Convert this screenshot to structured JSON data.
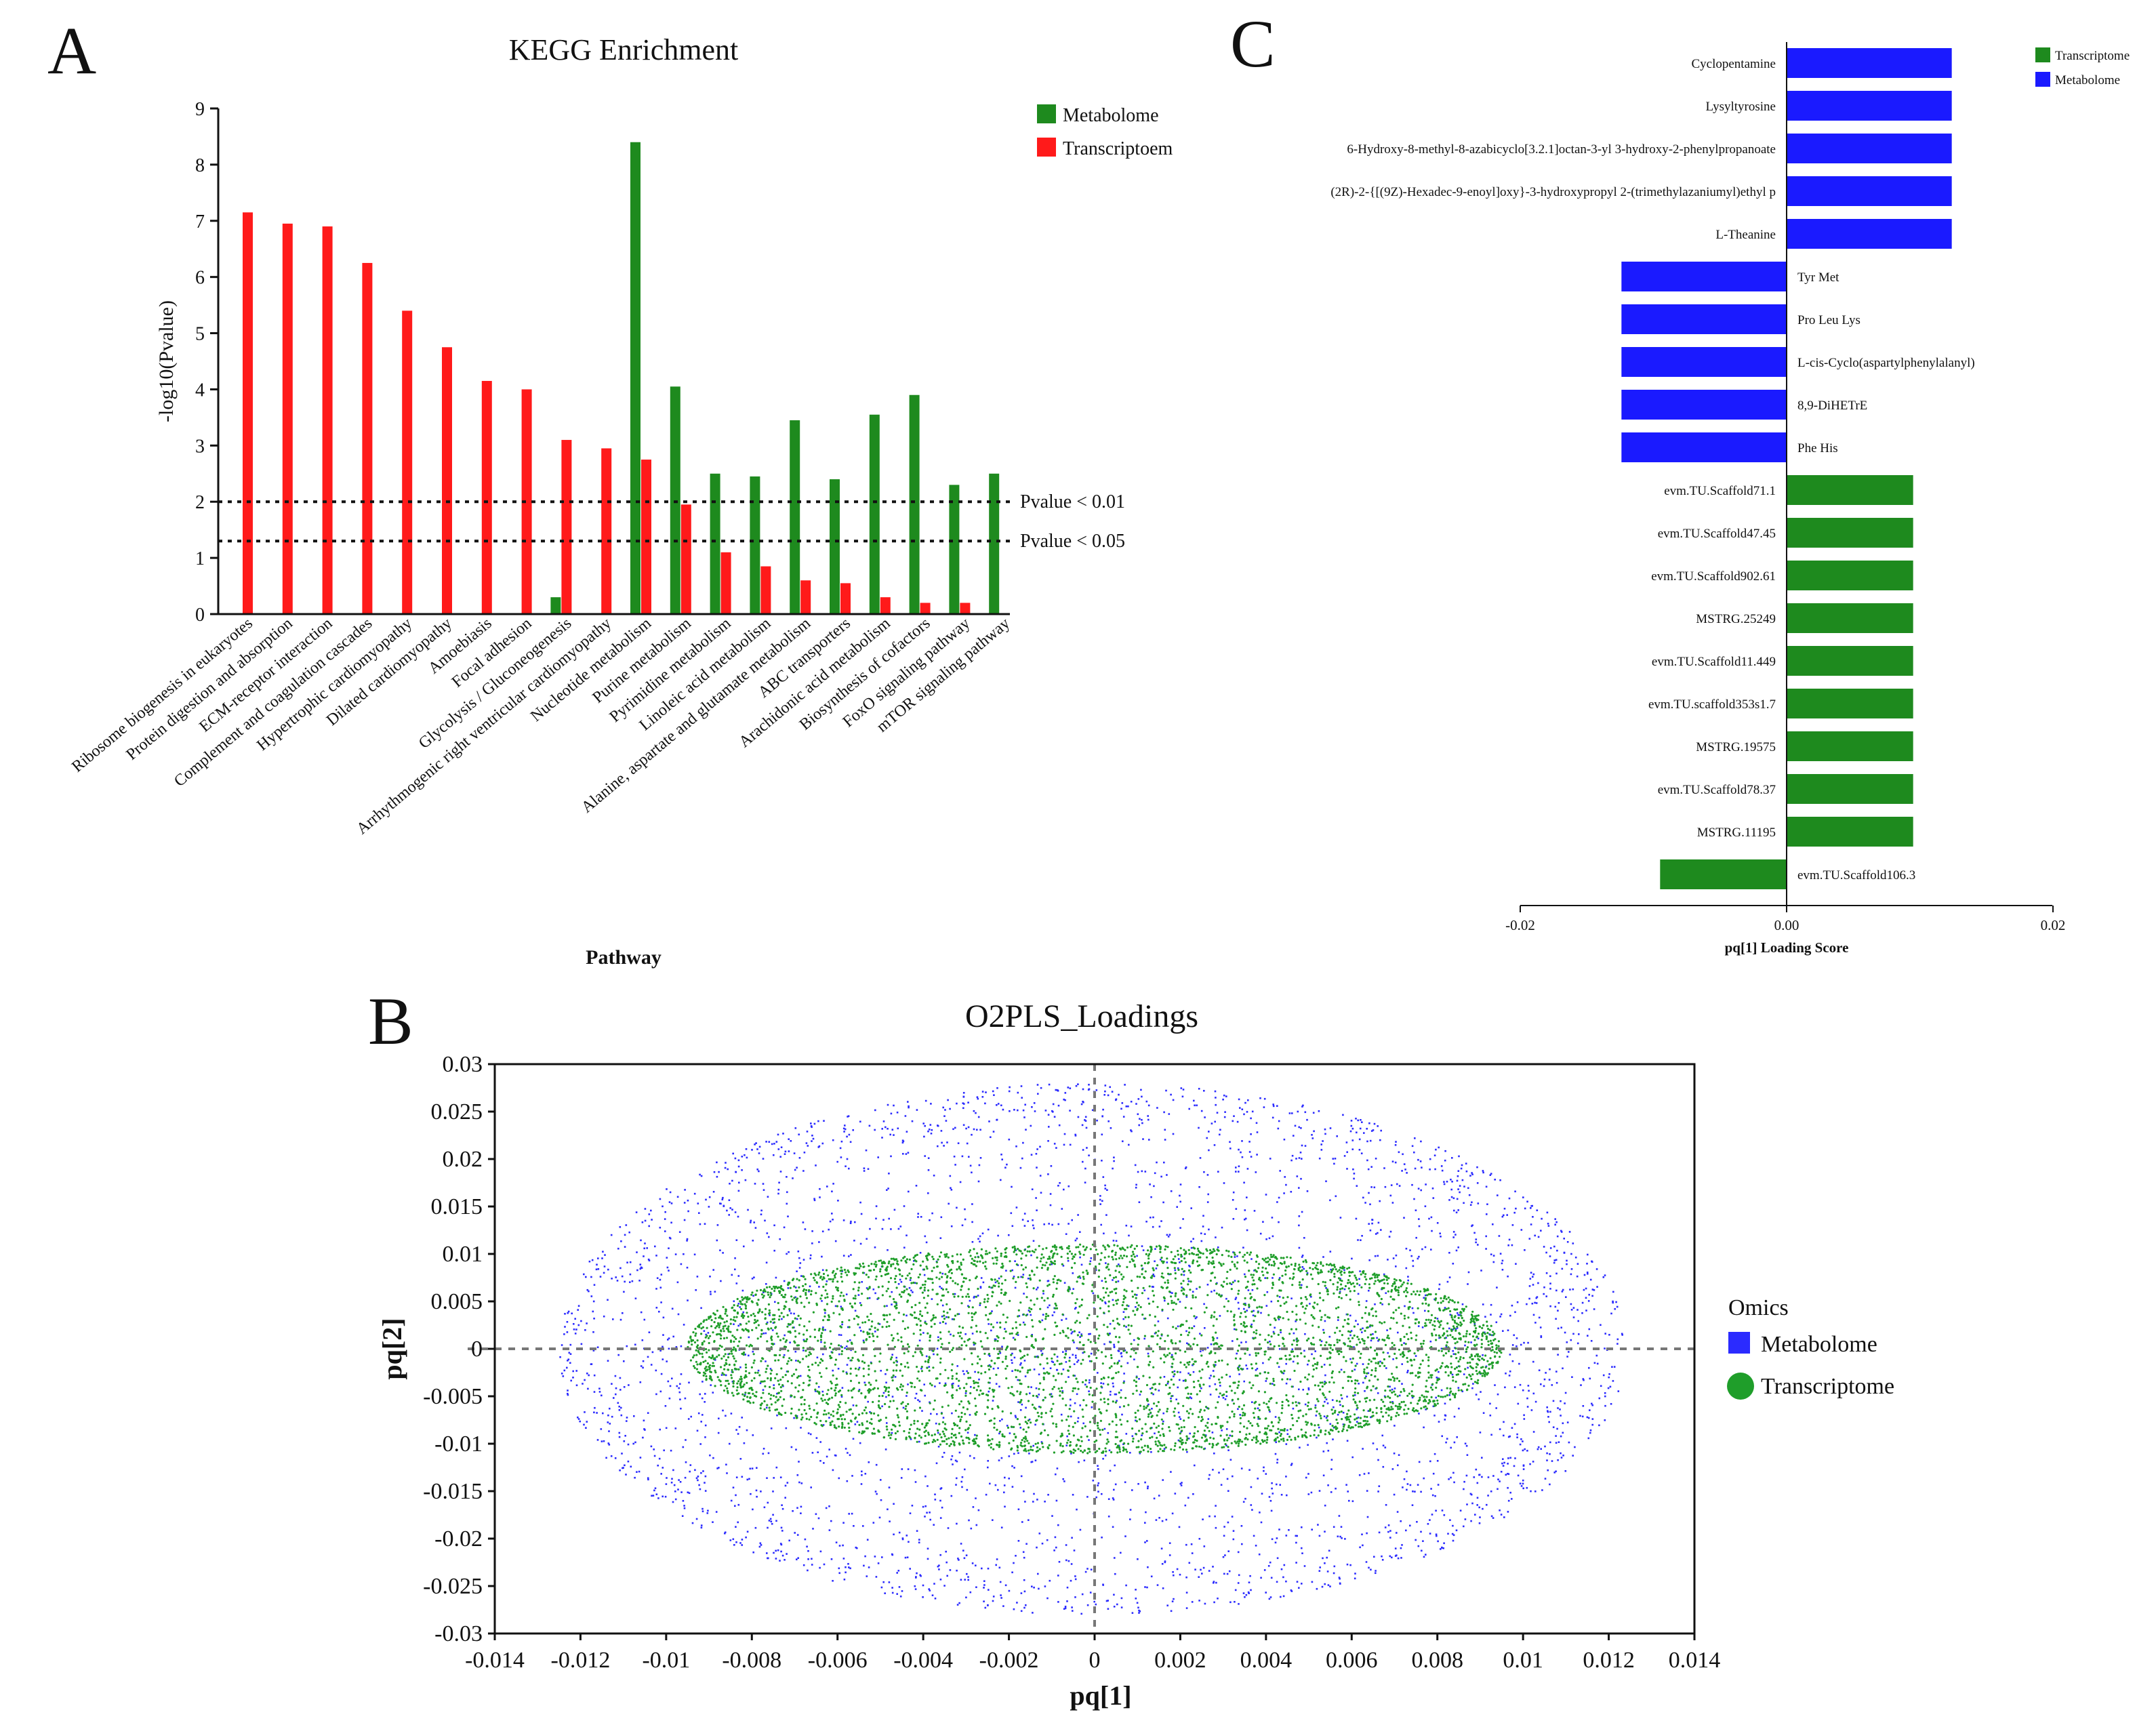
{
  "chart_data": [
    {
      "panel": "A",
      "type": "bar",
      "title": "KEGG Enrichment",
      "xlabel": "Pathway",
      "ylabel": "-log10(Pvalue)",
      "ylim": [
        0,
        9
      ],
      "yticks": [
        "0",
        "1",
        "2",
        "3",
        "4",
        "5",
        "6",
        "7",
        "8",
        "9"
      ],
      "categories": [
        "Ribosome biogenesis in eukaryotes",
        "Protein digestion and absorption",
        "ECM-receptor interaction",
        "Complement and coagulation cascades",
        "Hypertrophic cardiomyopathy",
        "Dilated cardiomyopathy",
        "Amoebiasis",
        "Focal adhesion",
        "Glycolysis / Gluconeogenesis",
        "Arrhythmogenic right ventricular cardiomyopathy",
        "Nucleotide metabolism",
        "Purine metabolism",
        "Pyrimidine metabolism",
        "Linoleic acid metabolism",
        "Alanine, aspartate and glutamate metabolism",
        "ABC transporters",
        "Arachidonic acid metabolism",
        "Biosynthesis of cofactors",
        "FoxO signaling pathway",
        "mTOR signaling pathway"
      ],
      "series": [
        {
          "name": "Metabolome",
          "color": "#1e8a1e",
          "values": [
            0,
            0,
            0,
            0,
            0,
            0,
            0,
            0,
            0.3,
            0,
            8.4,
            4.05,
            2.5,
            2.45,
            3.45,
            2.4,
            3.55,
            3.9,
            2.3,
            2.5
          ]
        },
        {
          "name": "Transcriptoem",
          "color": "#ff1a1a",
          "values": [
            7.15,
            6.95,
            6.9,
            6.25,
            5.4,
            4.75,
            4.15,
            4.0,
            3.1,
            2.95,
            2.75,
            1.95,
            1.1,
            0.85,
            0.6,
            0.55,
            0.3,
            0.2,
            0.2,
            0
          ]
        }
      ],
      "reference_lines": [
        {
          "label": "Pvalue < 0.01",
          "value": 2.0
        },
        {
          "label": "Pvalue < 0.05",
          "value": 1.3
        }
      ]
    },
    {
      "panel": "C",
      "type": "bar",
      "orientation": "horizontal",
      "xlabel": "pq[1] Loading Score",
      "xlim": [
        -0.02,
        0.02
      ],
      "xticks": [
        "-0.02",
        "0.00",
        "0.02"
      ],
      "series_names": [
        {
          "name": "Transcriptome",
          "color": "#1e8a1e"
        },
        {
          "name": "Metabolome",
          "color": "#1a1aff"
        }
      ],
      "bars": [
        {
          "label": "Cyclopentamine",
          "value": 0.0124,
          "group": "Metabolome"
        },
        {
          "label": "Lysyltyrosine",
          "value": 0.0124,
          "group": "Metabolome"
        },
        {
          "label": "6-Hydroxy-8-methyl-8-azabicyclo[3.2.1]octan-3-yl 3-hydroxy-2-phenylpropanoate",
          "value": 0.0124,
          "group": "Metabolome"
        },
        {
          "label": "(2R)-2-{[(9Z)-Hexadec-9-enoyl]oxy}-3-hydroxypropyl 2-(trimethylazaniumyl)ethyl p",
          "value": 0.0124,
          "group": "Metabolome"
        },
        {
          "label": "L-Theanine",
          "value": 0.0124,
          "group": "Metabolome"
        },
        {
          "label": "Tyr Met",
          "value": -0.0124,
          "group": "Metabolome"
        },
        {
          "label": "Pro Leu Lys",
          "value": -0.0124,
          "group": "Metabolome"
        },
        {
          "label": "L-cis-Cyclo(aspartylphenylalanyl)",
          "value": -0.0124,
          "group": "Metabolome"
        },
        {
          "label": "8,9-DiHETrE",
          "value": -0.0124,
          "group": "Metabolome"
        },
        {
          "label": "Phe His",
          "value": -0.0124,
          "group": "Metabolome"
        },
        {
          "label": "evm.TU.Scaffold71.1",
          "value": 0.0095,
          "group": "Transcriptome"
        },
        {
          "label": "evm.TU.Scaffold47.45",
          "value": 0.0095,
          "group": "Transcriptome"
        },
        {
          "label": "evm.TU.Scaffold902.61",
          "value": 0.0095,
          "group": "Transcriptome"
        },
        {
          "label": "MSTRG.25249",
          "value": 0.0095,
          "group": "Transcriptome"
        },
        {
          "label": "evm.TU.Scaffold11.449",
          "value": 0.0095,
          "group": "Transcriptome"
        },
        {
          "label": "evm.TU.scaffold353s1.7",
          "value": 0.0095,
          "group": "Transcriptome"
        },
        {
          "label": "MSTRG.19575",
          "value": 0.0095,
          "group": "Transcriptome"
        },
        {
          "label": "evm.TU.Scaffold78.37",
          "value": 0.0095,
          "group": "Transcriptome"
        },
        {
          "label": "MSTRG.11195",
          "value": 0.0095,
          "group": "Transcriptome"
        },
        {
          "label": "evm.TU.Scaffold106.3",
          "value": -0.0095,
          "group": "Transcriptome"
        }
      ]
    },
    {
      "panel": "B",
      "type": "scatter",
      "title": "O2PLS_Loadings",
      "xlabel": "pq[1]",
      "ylabel": "pq[2]",
      "xlim": [
        -0.014,
        0.014
      ],
      "ylim": [
        -0.03,
        0.03
      ],
      "xticks": [
        "-0.014",
        "-0.012",
        "-0.01",
        "-0.008",
        "-0.006",
        "-0.004",
        "-0.002",
        "0",
        "0.002",
        "0.004",
        "0.006",
        "0.008",
        "0.01",
        "0.012",
        "0.014"
      ],
      "yticks": [
        "0.03",
        "0.025",
        "0.02",
        "0.015",
        "0.01",
        "0.005",
        "0",
        "-0.005",
        "-0.01",
        "-0.015",
        "-0.02",
        "-0.025",
        "-0.03"
      ],
      "legend_title": "Omics",
      "series": [
        {
          "name": "Metabolome",
          "color": "#2b2bff",
          "marker": "square",
          "distribution": "ellipse",
          "x_range": [
            -0.0125,
            0.0124
          ],
          "y_range": [
            -0.028,
            0.028
          ]
        },
        {
          "name": "Transcriptome",
          "color": "#1f9e2a",
          "marker": "circle",
          "distribution": "ellipse",
          "x_range": [
            -0.0095,
            0.0095
          ],
          "y_range": [
            -0.011,
            0.011
          ]
        }
      ]
    }
  ],
  "panels": {
    "a_letter": "A",
    "b_letter": "B",
    "c_letter": "C"
  }
}
